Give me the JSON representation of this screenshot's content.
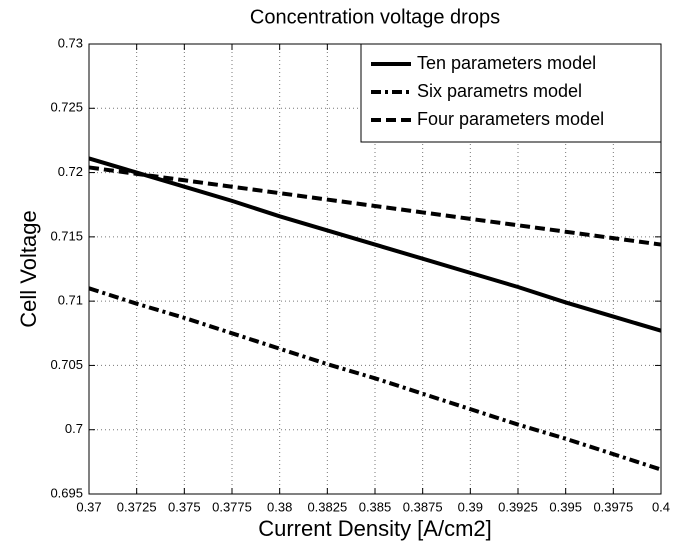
{
  "chart_data": {
    "type": "line",
    "title": "Concentration voltage drops",
    "xlabel": "Current Density [A/cm2]",
    "ylabel": "Cell Voltage",
    "x": [
      0.37,
      0.3725,
      0.375,
      0.3775,
      0.38,
      0.3825,
      0.385,
      0.3875,
      0.39,
      0.3925,
      0.395,
      0.3975,
      0.4
    ],
    "series": [
      {
        "name": "Ten parameters model",
        "color": "#000000",
        "dash": "solid",
        "values": [
          0.7211,
          0.72,
          0.7189,
          0.7178,
          0.7166,
          0.7155,
          0.7144,
          0.7133,
          0.7122,
          0.7111,
          0.7099,
          0.7088,
          0.7077
        ]
      },
      {
        "name": "Six parametrs model",
        "color": "#000000",
        "dash": "dashdot",
        "values": [
          0.711,
          0.7098,
          0.7087,
          0.7075,
          0.7063,
          0.7051,
          0.704,
          0.7028,
          0.7016,
          0.7004,
          0.6993,
          0.6981,
          0.6969
        ]
      },
      {
        "name": "Four parameters model",
        "color": "#000000",
        "dash": "dashed",
        "values": [
          0.7204,
          0.7199,
          0.7194,
          0.7189,
          0.7184,
          0.7179,
          0.7174,
          0.7169,
          0.7164,
          0.7159,
          0.7154,
          0.7149,
          0.7144
        ]
      }
    ],
    "xlim": [
      0.37,
      0.4
    ],
    "xticks": [
      0.37,
      0.3725,
      0.375,
      0.3775,
      0.38,
      0.3825,
      0.385,
      0.3875,
      0.39,
      0.3925,
      0.395,
      0.3975,
      0.4
    ],
    "ylim": [
      0.695,
      0.73
    ],
    "yticks": [
      0.695,
      0.7,
      0.705,
      0.71,
      0.715,
      0.72,
      0.725,
      0.73
    ],
    "grid": true,
    "legend": "upper right"
  }
}
